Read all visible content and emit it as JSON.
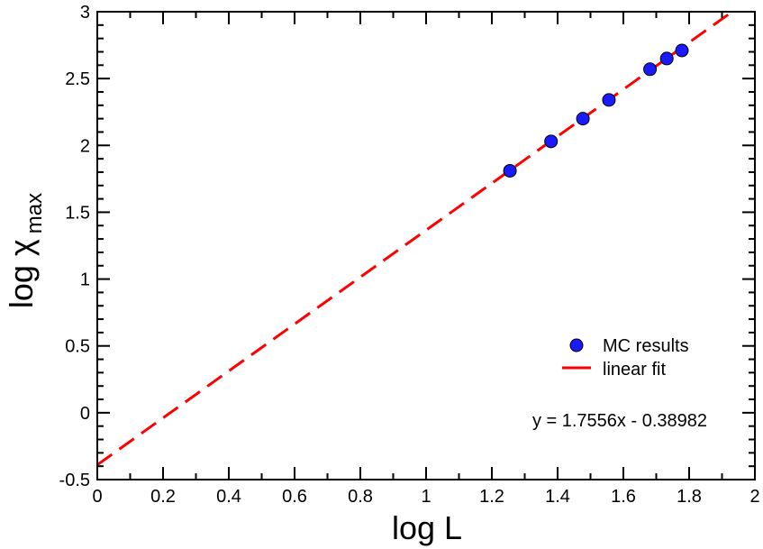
{
  "chart_data": {
    "type": "scatter",
    "title": "",
    "xlabel": "log L",
    "ylabel": {
      "main": "log χ",
      "subscript": "max"
    },
    "xlim": [
      0,
      2
    ],
    "ylim": [
      -0.5,
      3
    ],
    "x_ticks": [
      0,
      0.2,
      0.4,
      0.6,
      0.8,
      1,
      1.2,
      1.4,
      1.6,
      1.8,
      2
    ],
    "x_tick_labels": [
      "0",
      "0.2",
      "0.4",
      "0.6",
      "0.8",
      "1",
      "1.2",
      "1.4",
      "1.6",
      "1.8",
      "2"
    ],
    "y_ticks": [
      -0.5,
      0,
      0.5,
      1,
      1.5,
      2,
      2.5,
      3
    ],
    "y_tick_labels": [
      "-0.5",
      "0",
      "0.5",
      "1",
      "1.5",
      "2",
      "2.5",
      "3"
    ],
    "grid": false,
    "series": [
      {
        "name": "MC results",
        "kind": "scatter",
        "color": "#1a1aff",
        "edge_color": "#000000",
        "x": [
          1.255,
          1.38,
          1.477,
          1.556,
          1.681,
          1.732,
          1.778
        ],
        "y": [
          1.81,
          2.03,
          2.2,
          2.34,
          2.57,
          2.65,
          2.71
        ]
      },
      {
        "name": "linear fit",
        "kind": "line",
        "style": "dashed",
        "color": "#ff0000",
        "slope": 1.7556,
        "intercept": -0.38982,
        "x_range": [
          0,
          1.93
        ]
      }
    ],
    "legend_position": "lower-right",
    "annotations": [
      {
        "text": "y = 1.7556x - 0.38982",
        "position": "lower-right"
      }
    ]
  }
}
